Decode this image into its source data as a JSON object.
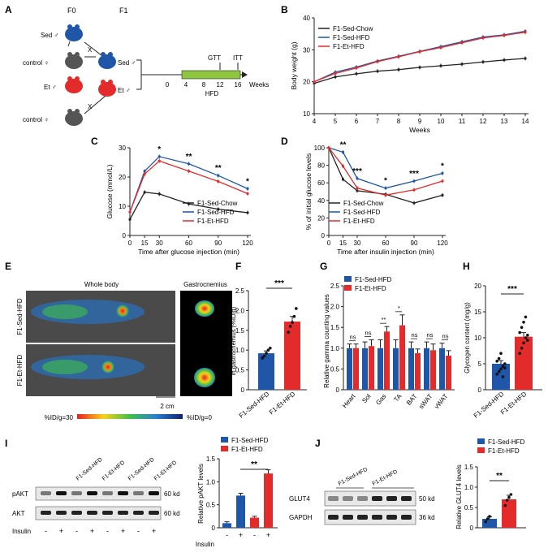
{
  "panels": {
    "A": "A",
    "B": "B",
    "C": "C",
    "D": "D",
    "E": "E",
    "F": "F",
    "G": "G",
    "H": "H",
    "I": "I",
    "J": "J"
  },
  "colors": {
    "chow": "#222222",
    "sed": "#1f56a8",
    "et": "#e32b2b",
    "heat_low": "#102070",
    "heat_high": "#e82020"
  },
  "panelA": {
    "col_f0": "F0",
    "col_f1": "F1",
    "sed_label": "Sed ♂",
    "control_label": "control ♀",
    "et_label": "Et ♂",
    "cross": "X",
    "f1_sed": "Sed ♂",
    "f1_et": "Et ♂",
    "gtt": "GTT",
    "itt": "ITT",
    "hfd": "HFD",
    "weeks": "Weeks",
    "ticks": [
      "0",
      "4",
      "8",
      "12",
      "16"
    ]
  },
  "panelE": {
    "whole_body": "Whole body",
    "gastrocnemius": "Gastrocnemius",
    "row1": "F1-Sed-HFD",
    "row2": "F1-Et-HFD",
    "scale_bar": "2 cm",
    "scale_high": "%ID/g=30",
    "scale_low": "%ID/g=0"
  },
  "panelI": {
    "row_pakt": "pAKT",
    "row_akt": "AKT",
    "kd1": "60 kd",
    "kd2": "60 kd",
    "insulin": "Insulin",
    "lanes": [
      "F1-Sed-HFD",
      "F1-Et-HFD",
      "F1-Sed-HFD",
      "F1-Et-HFD"
    ],
    "treatment": [
      "-",
      "+",
      "-",
      "+",
      "-",
      "+",
      "-",
      "+"
    ]
  },
  "panelJ": {
    "row_glut4": "GLUT4",
    "row_gapdh": "GAPDH",
    "kd1": "50 kd",
    "kd2": "36 kd",
    "lanes": [
      "F1-Sed-HFD",
      "F1-Et-HFD"
    ]
  },
  "chart_data": [
    {
      "id": "B",
      "type": "line",
      "title": "",
      "xlabel": "Weeks",
      "ylabel": "Body weight (g)",
      "x": [
        4,
        5,
        6,
        7,
        8,
        9,
        10,
        11,
        12,
        13,
        14
      ],
      "xlim": [
        4,
        14
      ],
      "ylim": [
        10,
        40
      ],
      "yticks": [
        10,
        20,
        30,
        40
      ],
      "legend": [
        "F1-Sed-Chow",
        "F1-Sed-HFD",
        "F1-Et-HFD"
      ],
      "series": [
        {
          "name": "F1-Sed-Chow",
          "values": [
            19.5,
            21.5,
            22.5,
            23.3,
            23.8,
            24.5,
            25,
            25.5,
            26.2,
            26.8,
            27.3
          ]
        },
        {
          "name": "F1-Sed-HFD",
          "values": [
            20,
            23,
            24.6,
            26.5,
            28,
            29.5,
            31,
            32.5,
            34,
            34.7,
            35.8
          ]
        },
        {
          "name": "F1-Et-HFD",
          "values": [
            20,
            22.6,
            24.3,
            26.3,
            27.8,
            29.4,
            30.7,
            32.2,
            33.7,
            34.5,
            35.5
          ]
        }
      ]
    },
    {
      "id": "C",
      "type": "line",
      "title": "",
      "xlabel": "Time after glucose injection (min)",
      "ylabel": "Glucose (mmol/L)",
      "x": [
        0,
        15,
        30,
        60,
        90,
        120
      ],
      "xlim": [
        0,
        120
      ],
      "ylim": [
        0,
        30
      ],
      "yticks": [
        0,
        10,
        20,
        30
      ],
      "legend": [
        "F1-Sed-Chow",
        "F1-Sed-HFD",
        "F1-Et-HFD"
      ],
      "series": [
        {
          "name": "F1-Sed-Chow",
          "values": [
            5.5,
            14.8,
            14.2,
            10.8,
            9,
            7.8
          ]
        },
        {
          "name": "F1-Sed-HFD",
          "values": [
            8,
            22,
            27,
            24.5,
            20.5,
            16
          ]
        },
        {
          "name": "F1-Et-HFD",
          "values": [
            8,
            21,
            25.5,
            22,
            18.5,
            14.3
          ]
        }
      ],
      "annotations": [
        {
          "x": 30,
          "text": "*"
        },
        {
          "x": 60,
          "text": "**"
        },
        {
          "x": 90,
          "text": "**"
        },
        {
          "x": 120,
          "text": "*"
        }
      ]
    },
    {
      "id": "D",
      "type": "line",
      "title": "",
      "xlabel": "Time after insulin injection (min)",
      "ylabel": "% of initial glucose levels",
      "x": [
        0,
        15,
        30,
        60,
        90,
        120
      ],
      "xlim": [
        0,
        120
      ],
      "ylim": [
        0,
        100
      ],
      "yticks": [
        0,
        20,
        40,
        60,
        80,
        100
      ],
      "legend": [
        "F1-Sed-Chow",
        "F1-Sed-HFD",
        "F1-Et-HFD"
      ],
      "series": [
        {
          "name": "F1-Sed-Chow",
          "values": [
            100,
            64,
            51,
            47,
            37,
            46
          ]
        },
        {
          "name": "F1-Sed-HFD",
          "values": [
            100,
            95,
            65,
            54,
            62,
            71
          ]
        },
        {
          "name": "F1-Et-HFD",
          "values": [
            100,
            79,
            54,
            46,
            52,
            62
          ]
        }
      ],
      "annotations": [
        {
          "x": 15,
          "text": "**"
        },
        {
          "x": 30,
          "text": "***"
        },
        {
          "x": 60,
          "text": "*"
        },
        {
          "x": 90,
          "text": "***"
        },
        {
          "x": 120,
          "text": "*"
        }
      ]
    },
    {
      "id": "F",
      "type": "bar",
      "title": "",
      "xlabel": "",
      "ylabel": "Quantification of radioactivity uptake in gastrocnemius (%ID/g)",
      "categories": [
        "F1-Sed-HFD",
        "F1-Et-HFD"
      ],
      "values": [
        0.92,
        1.72
      ],
      "errors": [
        0.06,
        0.13
      ],
      "ylim": [
        0,
        2.5
      ],
      "yticks": [
        "0",
        "0.5",
        "1.0",
        "1.5",
        "2.0",
        "2.5"
      ],
      "points": [
        [
          0.8,
          0.85,
          0.92,
          1.0,
          1.05
        ],
        [
          1.45,
          1.6,
          1.7,
          1.85,
          2.05
        ]
      ],
      "significance": "***"
    },
    {
      "id": "G",
      "type": "bar",
      "title": "",
      "xlabel": "",
      "ylabel": "Relative gamma counting values",
      "categories": [
        "Heart",
        "Sol",
        "Gas",
        "TA",
        "BAT",
        "sWAT",
        "vWAT"
      ],
      "ylim": [
        0,
        2.5
      ],
      "yticks": [
        "0",
        "0.5",
        "1.0",
        "1.5",
        "2.0",
        "2.5"
      ],
      "legend": [
        "F1-Sed-HFD",
        "F1-Et-HFD"
      ],
      "series": [
        {
          "name": "F1-Sed-HFD",
          "values": [
            1.0,
            1.0,
            1.0,
            1.0,
            1.0,
            1.0,
            1.0
          ],
          "errors": [
            0.1,
            0.15,
            0.2,
            0.2,
            0.15,
            0.15,
            0.12
          ]
        },
        {
          "name": "F1-Et-HFD",
          "values": [
            1.0,
            1.05,
            1.4,
            1.55,
            0.88,
            0.95,
            0.82
          ],
          "errors": [
            0.1,
            0.15,
            0.12,
            0.25,
            0.1,
            0.15,
            0.12
          ]
        }
      ],
      "significance": [
        "ns",
        "ns",
        "**",
        "*",
        "ns",
        "ns",
        "ns"
      ]
    },
    {
      "id": "H",
      "type": "bar",
      "title": "",
      "xlabel": "",
      "ylabel": "Glycogen content (mg/g)",
      "categories": [
        "F1-Sed-HFD",
        "F1-Et-HFD"
      ],
      "values": [
        5,
        10.2
      ],
      "errors": [
        0.6,
        0.8
      ],
      "ylim": [
        0,
        20
      ],
      "yticks": [
        "0",
        "5",
        "10",
        "15",
        "20"
      ],
      "points": [
        [
          3,
          3.5,
          4,
          4.5,
          5,
          5.5,
          6,
          7,
          2.5,
          4.2
        ],
        [
          7,
          8,
          9,
          10,
          10.5,
          11,
          12,
          13,
          14,
          9.5
        ]
      ],
      "significance": "***"
    },
    {
      "id": "I",
      "type": "bar",
      "title": "",
      "xlabel": "Insulin",
      "ylabel": "Relative pAKT levels",
      "categories": [
        "Sed -",
        "Sed +",
        "Et -",
        "Et +"
      ],
      "values": [
        0.1,
        0.7,
        0.22,
        1.18
      ],
      "errors": [
        0.03,
        0.05,
        0.03,
        0.08
      ],
      "ylim": [
        0,
        1.5
      ],
      "yticks": [
        "0",
        "0.5",
        "1.0",
        "1.5"
      ],
      "treatment": [
        "-",
        "+",
        "-",
        "+"
      ],
      "legend": [
        "F1-Sed-HFD",
        "F1-Et-HFD"
      ],
      "significance": "**"
    },
    {
      "id": "J",
      "type": "bar",
      "title": "",
      "xlabel": "",
      "ylabel": "Relative GLUT4 levels",
      "categories": [
        "F1-Sed-HFD",
        "F1-Et-HFD"
      ],
      "values": [
        0.22,
        0.7
      ],
      "errors": [
        0.05,
        0.1
      ],
      "ylim": [
        0,
        1.5
      ],
      "yticks": [
        "0",
        "0.5",
        "1.0",
        "1.5"
      ],
      "legend": [
        "F1-Sed-HFD",
        "F1-Et-HFD"
      ],
      "significance": "**"
    }
  ]
}
